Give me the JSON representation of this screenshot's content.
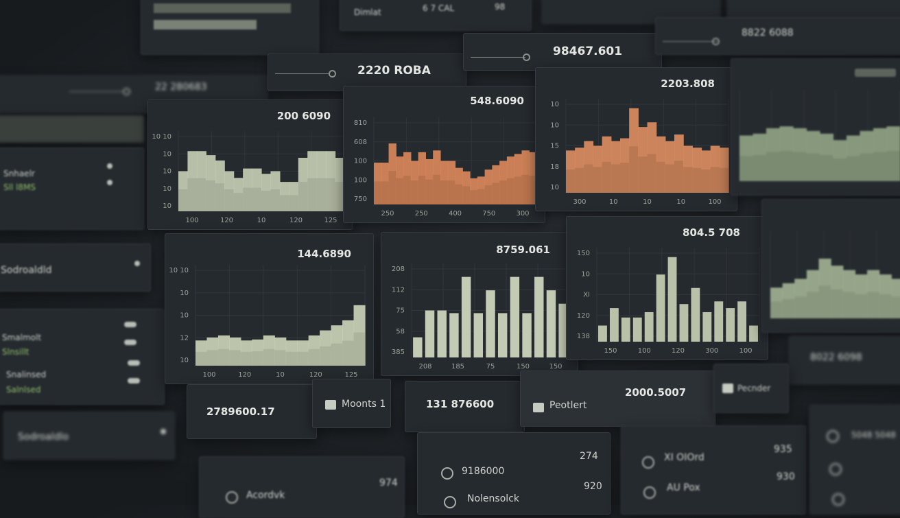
{
  "top_bar": [
    "Dimlat",
    "6 7 CAL",
    "98"
  ],
  "header_stats": [
    "22 280683",
    "2220 ROBA",
    "98467.601",
    "8822 6088"
  ],
  "sidebar": [
    "Snhaelr",
    "Sll l8MS",
    "Sodroaldld",
    "Smalmolt",
    "Slnsillt",
    "Snalinsed",
    "Salnlsed",
    "Sodroaldlo"
  ],
  "charts": [
    {
      "type": "area",
      "title": "200 6090",
      "color": "#c3ccb3",
      "ylim": [
        0,
        60
      ],
      "values": [
        30,
        45,
        45,
        42,
        38,
        30,
        25,
        32,
        32,
        28,
        30,
        22,
        22,
        40,
        45,
        45,
        45,
        40
      ],
      "y_labels": [
        "10 10",
        "10",
        "10",
        "10",
        "10"
      ],
      "x_labels": [
        "100",
        "120",
        "10",
        "120",
        "125"
      ]
    },
    {
      "type": "area",
      "title": "548.6090",
      "color": "#d9875a",
      "ylim": [
        0,
        100
      ],
      "values": [
        48,
        48,
        70,
        55,
        60,
        50,
        60,
        52,
        62,
        50,
        50,
        42,
        38,
        30,
        32,
        40,
        45,
        50,
        55,
        58,
        62,
        60
      ],
      "y_labels": [
        "810",
        "608",
        "100",
        "100",
        "750"
      ],
      "x_labels": [
        "250",
        "250",
        "400",
        "750",
        "300"
      ]
    },
    {
      "type": "area",
      "title": "2203.808",
      "color": "#d98c5f",
      "ylim": [
        0,
        100
      ],
      "values": [
        45,
        48,
        55,
        50,
        60,
        55,
        58,
        90,
        70,
        75,
        60,
        55,
        62,
        50,
        48,
        45,
        50,
        48
      ],
      "y_labels": [
        "10",
        "10",
        "15",
        "18",
        "10"
      ],
      "x_labels": [
        "300",
        "10",
        "10",
        "10",
        "100"
      ]
    },
    {
      "type": "area",
      "color": "#8fa284",
      "ylim": [
        0,
        100
      ],
      "values": [
        50,
        52,
        58,
        60,
        58,
        55,
        52,
        45,
        50,
        55,
        58,
        60
      ]
    },
    {
      "type": "area",
      "title": "144.6890",
      "color": "#c9d1b6",
      "ylim": [
        0,
        100
      ],
      "values": [
        25,
        28,
        30,
        28,
        25,
        26,
        30,
        28,
        25,
        25,
        30,
        35,
        40,
        45,
        60
      ],
      "y_labels": [
        "10 10",
        "10",
        "10",
        "12",
        "10"
      ],
      "x_labels": [
        "100",
        "120",
        "10",
        "120",
        "125"
      ]
    },
    {
      "type": "bar",
      "title": "8759.061",
      "color": "#c4cbb4",
      "ylim": [
        0,
        70
      ],
      "values": [
        15,
        35,
        35,
        33,
        60,
        33,
        50,
        33,
        60,
        33,
        60,
        50,
        40
      ],
      "y_labels": [
        "208",
        "112",
        "75",
        "58",
        "385"
      ],
      "x_labels": [
        "208",
        "185",
        "75",
        "150",
        "150"
      ]
    },
    {
      "type": "bar",
      "title": "804.5 708",
      "color": "#b9c1a9",
      "ylim": [
        0,
        70
      ],
      "values": [
        12,
        25,
        18,
        18,
        22,
        50,
        63,
        28,
        40,
        22,
        30,
        25,
        30,
        12
      ],
      "y_labels": [
        "150",
        "10",
        "XI",
        "120",
        "138"
      ],
      "x_labels": [
        "150",
        "100",
        "120",
        "300",
        "100"
      ]
    },
    {
      "type": "area",
      "color": "#9fb092",
      "ylim": [
        0,
        100
      ],
      "values": [
        35,
        40,
        45,
        55,
        68,
        60,
        55,
        50,
        55,
        50,
        45
      ]
    }
  ],
  "right_labels": [
    "8022 6098",
    "5048 5048"
  ],
  "cards": [
    {
      "value": "2789600.17"
    },
    {
      "label": "Moonts 1"
    },
    {
      "value": "131 876600"
    },
    {
      "label": "Peotlert",
      "value": "2000.5007"
    },
    {
      "label": "Pecnder"
    }
  ],
  "list_items": [
    {
      "label": "Acordvk",
      "value": "974"
    },
    {
      "label": "9186000",
      "value": "274"
    },
    {
      "label": "Nolensolck",
      "value": "920"
    },
    {
      "label": "XI OIOrd",
      "value": "935"
    },
    {
      "label": "AU Pox",
      "value": "930"
    }
  ]
}
